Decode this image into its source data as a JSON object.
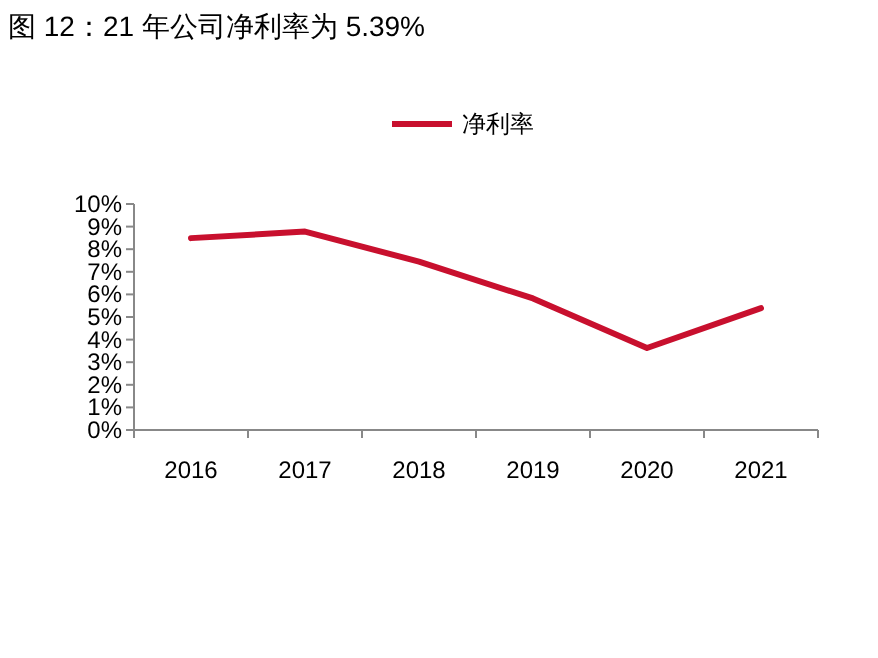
{
  "chart_data": {
    "type": "line",
    "title": "图 12：21 年公司净利率为 5.39%",
    "categories": [
      "2016",
      "2017",
      "2018",
      "2019",
      "2020",
      "2021"
    ],
    "series": [
      {
        "name": "净利率",
        "color": "#c8102e",
        "values": [
          8.49,
          8.78,
          7.45,
          5.82,
          3.63,
          5.39
        ]
      }
    ],
    "ylim": [
      0,
      10
    ],
    "yticks": [
      {
        "value": 0,
        "label": "0%"
      },
      {
        "value": 1,
        "label": "1%"
      },
      {
        "value": 2,
        "label": "2%"
      },
      {
        "value": 3,
        "label": "3%"
      },
      {
        "value": 4,
        "label": "4%"
      },
      {
        "value": 5,
        "label": "5%"
      },
      {
        "value": 6,
        "label": "6%"
      },
      {
        "value": 7,
        "label": "7%"
      },
      {
        "value": 8,
        "label": "8%"
      },
      {
        "value": 9,
        "label": "9%"
      },
      {
        "value": 10,
        "label": "10%"
      }
    ],
    "grid": false,
    "legend": "top",
    "marker": "none",
    "line_style": "solid"
  }
}
